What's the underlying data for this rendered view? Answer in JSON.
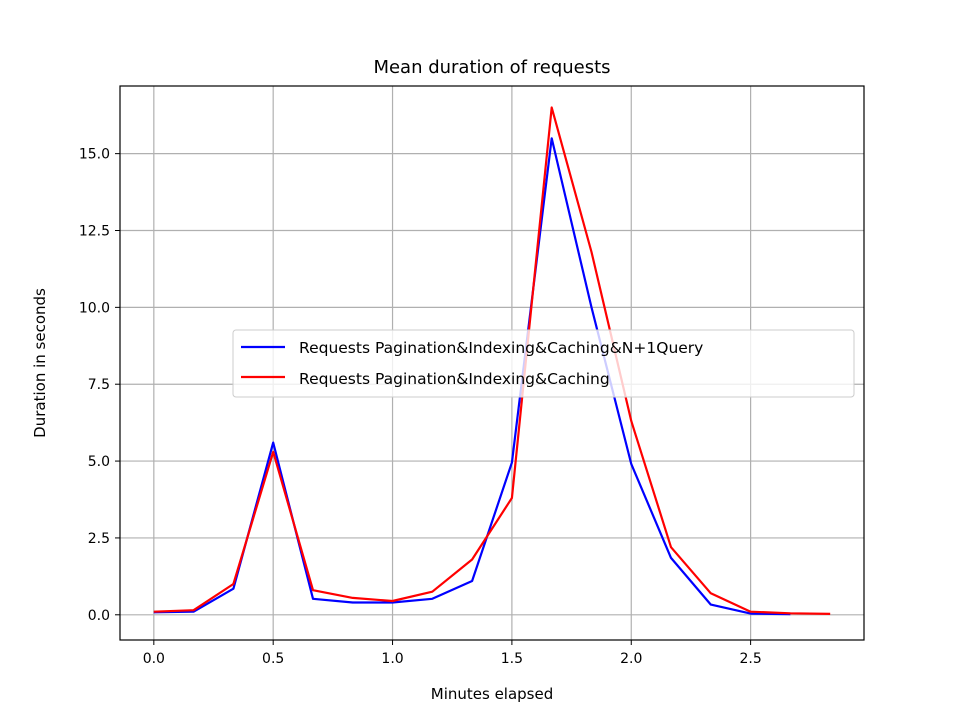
{
  "chart_data": {
    "type": "line",
    "title": "Mean duration of requests",
    "xlabel": "Minutes elapsed",
    "ylabel": "Duration in seconds",
    "xlim": [
      -0.1417,
      2.975
    ],
    "ylim": [
      -0.82,
      17.2
    ],
    "xticks": [
      0.0,
      0.5,
      1.0,
      1.5,
      2.0,
      2.5
    ],
    "xtick_labels": [
      "0.0",
      "0.5",
      "1.0",
      "1.5",
      "2.0",
      "2.5"
    ],
    "yticks": [
      0.0,
      2.5,
      5.0,
      7.5,
      10.0,
      12.5,
      15.0
    ],
    "ytick_labels": [
      "0.0",
      "2.5",
      "5.0",
      "7.5",
      "10.0",
      "12.5",
      "15.0"
    ],
    "grid": true,
    "legend_position": "center-right",
    "series": [
      {
        "name": "Requests Pagination&Indexing&Caching&N+1Query",
        "color": "#0000ff",
        "x": [
          0.0,
          0.1667,
          0.3333,
          0.5,
          0.6667,
          0.8333,
          1.0,
          1.1667,
          1.3333,
          1.5,
          1.6667,
          1.8333,
          2.0,
          2.1667,
          2.3333,
          2.5,
          2.6667
        ],
        "y": [
          0.08,
          0.1,
          0.85,
          5.6,
          0.52,
          0.4,
          0.4,
          0.52,
          1.1,
          4.95,
          15.5,
          10.0,
          4.9,
          1.85,
          0.33,
          0.04,
          0.02
        ]
      },
      {
        "name": "Requests Pagination&Indexing&Caching",
        "color": "#ff0000",
        "x": [
          0.0,
          0.1667,
          0.3333,
          0.5,
          0.6667,
          0.8333,
          1.0,
          1.1667,
          1.3333,
          1.5,
          1.6667,
          1.8333,
          2.0,
          2.1667,
          2.3333,
          2.5,
          2.6667,
          2.8333
        ],
        "y": [
          0.1,
          0.15,
          1.0,
          5.3,
          0.8,
          0.55,
          0.45,
          0.75,
          1.8,
          3.8,
          16.5,
          11.8,
          6.3,
          2.2,
          0.7,
          0.1,
          0.05,
          0.03
        ]
      }
    ]
  }
}
